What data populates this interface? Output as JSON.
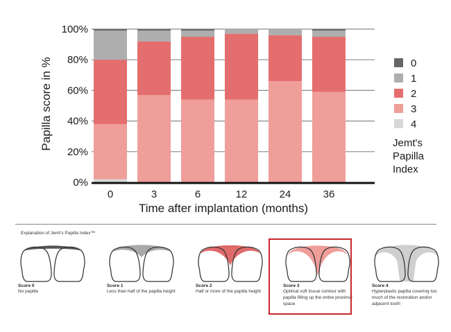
{
  "chart_data": {
    "type": "bar",
    "stacked": true,
    "categories": [
      "0",
      "3",
      "6",
      "12",
      "24",
      "36"
    ],
    "series": [
      {
        "name": "4",
        "color": "#d8d8d8",
        "values": [
          2,
          0,
          0,
          0,
          0,
          0
        ]
      },
      {
        "name": "3",
        "color": "#ef9e9a",
        "values": [
          36,
          57,
          54,
          54,
          66,
          59
        ]
      },
      {
        "name": "2",
        "color": "#e46e6e",
        "values": [
          42,
          35,
          41,
          43,
          30,
          36
        ]
      },
      {
        "name": "1",
        "color": "#aeaeae",
        "values": [
          19,
          7,
          4,
          3,
          4,
          4
        ]
      },
      {
        "name": "0",
        "color": "#666666",
        "values": [
          1,
          1,
          1,
          0,
          0,
          1
        ]
      }
    ],
    "yticks": [
      "0%",
      "20%",
      "40%",
      "60%",
      "80%",
      "100%"
    ],
    "ylim": [
      0,
      100
    ],
    "xlabel": "Time after implantation (months)",
    "ylabel": "Papilla score in %",
    "legend_title": [
      "Jemt's",
      "Papilla",
      "Index"
    ],
    "legend_order": [
      "0",
      "1",
      "2",
      "3",
      "4"
    ],
    "legend_position": "right",
    "grid": true
  },
  "explanation": {
    "title": "Explanation of Jemt's Papilla Index™",
    "highlighted_score": 3,
    "scores": [
      {
        "name": "Score 0",
        "desc": "No papilla",
        "fill": "#555555"
      },
      {
        "name": "Score 1",
        "desc": "Less than half of the papilla height",
        "fill": "#a8a8a8"
      },
      {
        "name": "Score 2",
        "desc": "Half or more of the papilla height",
        "fill": "#df6a6a"
      },
      {
        "name": "Score 3",
        "desc": "Optimal soft tissue contour with papilla filling up the entire proximal space",
        "fill": "#ef9e9a"
      },
      {
        "name": "Score 4",
        "desc": "Hyperplastic papilla covering too much of the restoration and/or adjacent tooth",
        "fill": "#cfcfcf"
      }
    ]
  }
}
